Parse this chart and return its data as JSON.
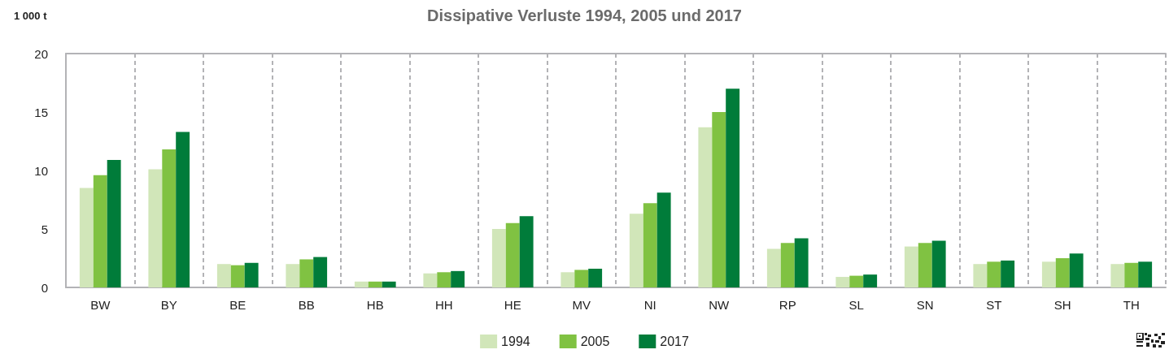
{
  "chart_data": {
    "type": "bar",
    "title": "Dissipative Verluste 1994, 2005 und 2017",
    "ylabel": "1 000 t",
    "categories": [
      "BW",
      "BY",
      "BE",
      "BB",
      "HB",
      "HH",
      "HE",
      "MV",
      "NI",
      "NW",
      "RP",
      "SL",
      "SN",
      "ST",
      "SH",
      "TH"
    ],
    "series": [
      {
        "name": "1994",
        "color": "#d1e6b9",
        "values": [
          8.5,
          10.1,
          2.0,
          2.0,
          0.5,
          1.2,
          5.0,
          1.3,
          6.3,
          13.7,
          3.3,
          0.9,
          3.5,
          2.0,
          2.2,
          2.0
        ]
      },
      {
        "name": "2005",
        "color": "#80c242",
        "values": [
          9.6,
          11.8,
          1.9,
          2.4,
          0.5,
          1.3,
          5.5,
          1.5,
          7.2,
          15.0,
          3.8,
          1.0,
          3.8,
          2.2,
          2.5,
          2.1
        ]
      },
      {
        "name": "2017",
        "color": "#007c3a",
        "values": [
          10.9,
          13.3,
          2.1,
          2.6,
          0.5,
          1.4,
          6.1,
          1.6,
          8.1,
          17.0,
          4.2,
          1.1,
          4.0,
          2.3,
          2.9,
          2.2
        ]
      }
    ],
    "ylim": [
      0,
      20
    ],
    "yticks": [
      0,
      5,
      10,
      15,
      20
    ],
    "grid": "x",
    "legend": "bottom"
  }
}
